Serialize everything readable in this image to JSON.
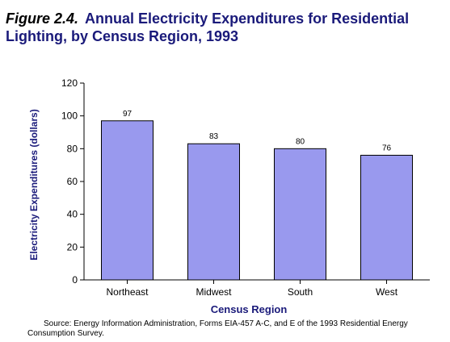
{
  "figure_label": "Figure 2.4.",
  "title": "Annual Electricity Expenditures for Residential Lighting, by Census Region, 1993",
  "source": "Source:  Energy Information Administration, Forms EIA-457 A-C, and E of the 1993 Residential Energy Consumption Survey.",
  "colors": {
    "bar_fill": "#9999ee",
    "bar_stroke": "#000000",
    "title": "#1a1a7a",
    "axis_label": "#1a1a7a"
  },
  "chart_data": {
    "type": "bar",
    "categories": [
      "Northeast",
      "Midwest",
      "South",
      "West"
    ],
    "values": [
      97,
      83,
      80,
      76
    ],
    "data_labels": [
      "97",
      "83",
      "80",
      "76"
    ],
    "xlabel": "Census Region",
    "ylabel": "Electricity Expenditures (dollars)",
    "ylim": [
      0,
      120
    ],
    "yticks": [
      0,
      20,
      40,
      60,
      80,
      100,
      120
    ],
    "grid": false,
    "legend": "none"
  }
}
